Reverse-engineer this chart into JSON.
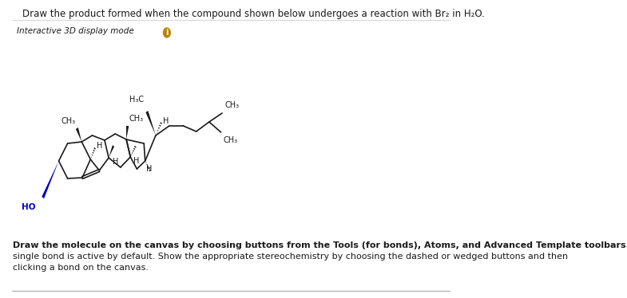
{
  "title_text": "Draw the product formed when the compound shown below undergoes a reaction with Br₂ in H₂O.",
  "interactive_text": "Interactive 3D display mode",
  "bottom_text": "Draw the molecule on the canvas by choosing buttons from the Tools (for bonds), Atoms, and Advanced Template toolbars. The single bond is active by default. Show the appropriate stereochemistry by choosing the dashed or wedged buttons and then clicking a bond on the canvas.",
  "bg_color": "#ffffff",
  "line_color": "#1a1a1a",
  "ho_color": "#0000cc",
  "text_color": "#1a1a1a",
  "title_fontsize": 8.5,
  "label_fontsize": 7.5,
  "small_fontsize": 7.0,
  "body_fontsize": 8.0,
  "circle_color": "#b8860b"
}
